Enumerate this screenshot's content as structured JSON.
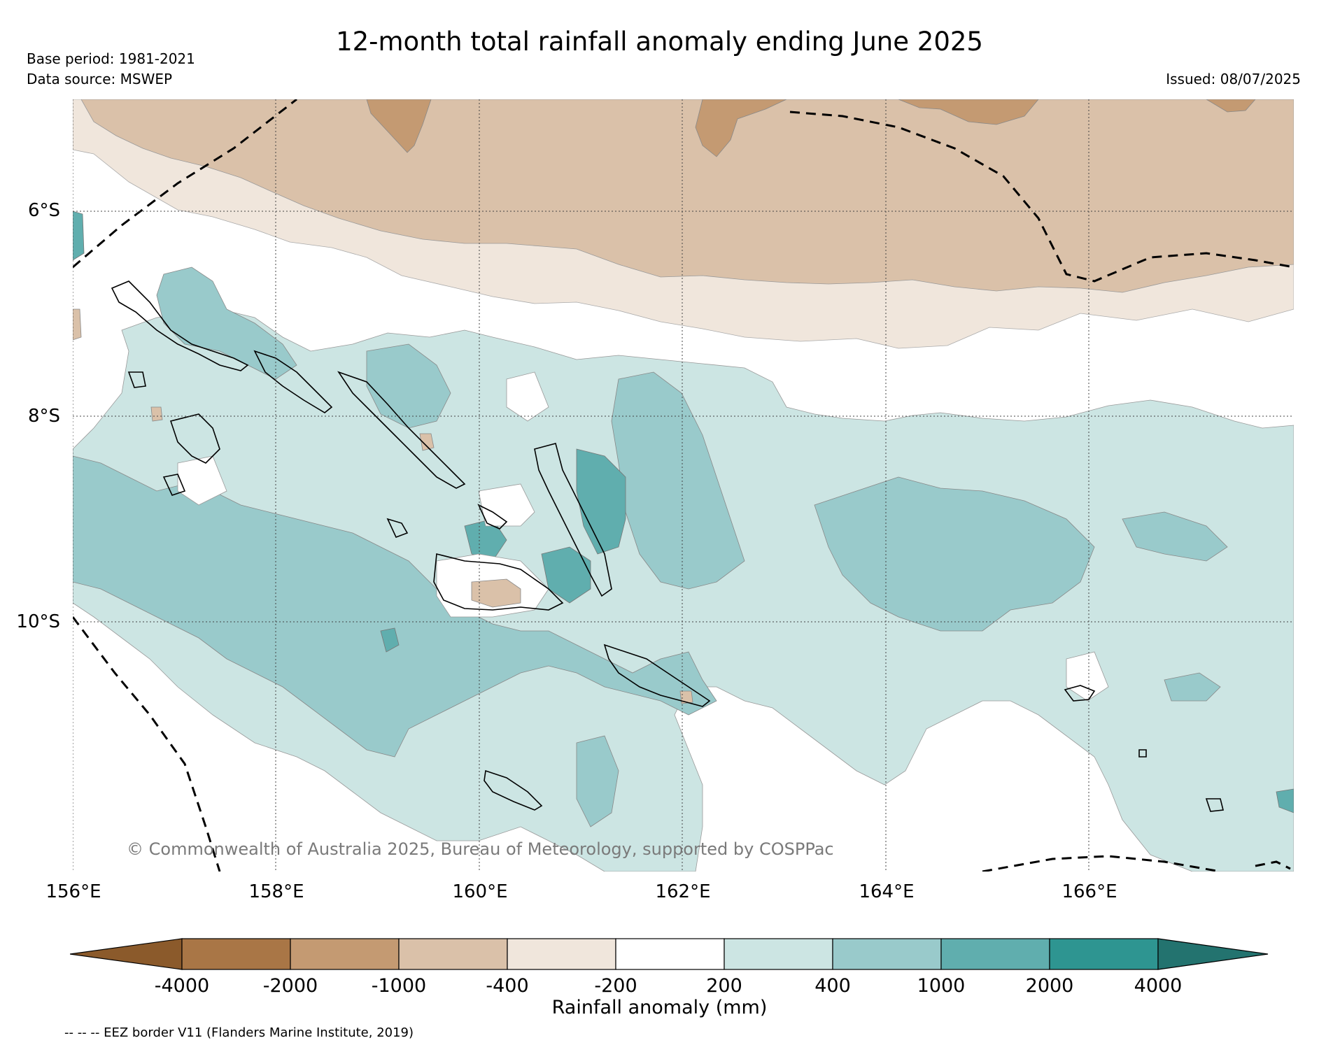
{
  "title": "12-month total rainfall anomaly ending June 2025",
  "base_period": "Base period: 1981-2021",
  "data_source": "Data source: MSWEP",
  "issued": "Issued: 08/07/2025",
  "copyright": "© Commonwealth of Australia 2025, Bureau of Meteorology, supported by COSPPac",
  "lat_labels": [
    "6°S",
    "8°S",
    "10°S"
  ],
  "lon_labels": [
    "156°E",
    "158°E",
    "160°E",
    "162°E",
    "164°E",
    "166°E"
  ],
  "legend": {
    "title": "Rainfall anomaly (mm)",
    "ticks": [
      "-4000",
      "-2000",
      "-1000",
      "-400",
      "-200",
      "200",
      "400",
      "1000",
      "2000",
      "4000"
    ],
    "colors": [
      "#8b5a2b",
      "#a97646",
      "#c49a72",
      "#dac1a9",
      "#f0e6dc",
      "#ffffff",
      "#cce5e3",
      "#99cacb",
      "#60aeae",
      "#2e9591",
      "#23736f"
    ]
  },
  "eez_note": "-- -- -- EEZ border V11 (Flanders Marine Institute, 2019)"
}
